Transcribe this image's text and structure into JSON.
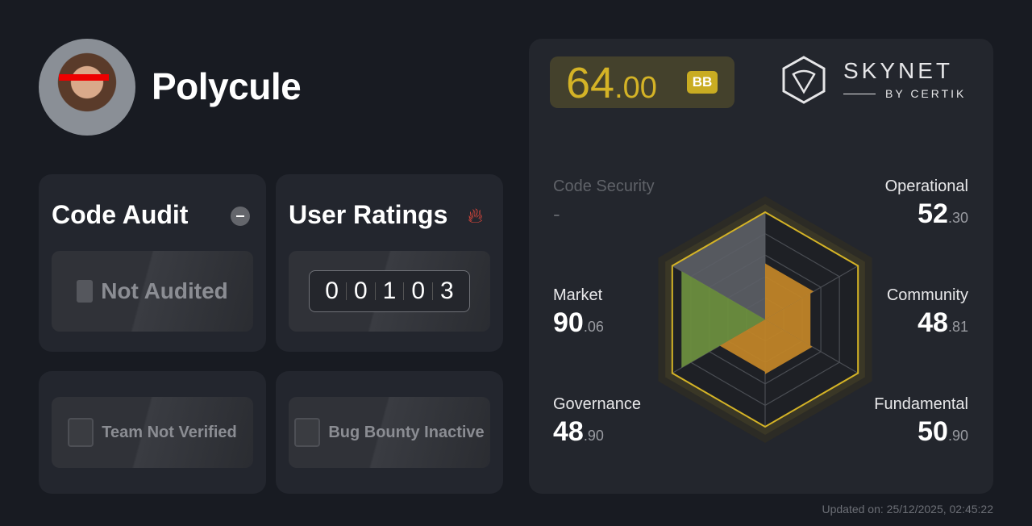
{
  "profile": {
    "name": "Polycule"
  },
  "code_audit": {
    "title": "Code Audit",
    "status": "Not Audited",
    "icon": "minus-circle-icon"
  },
  "user_ratings": {
    "title": "User Ratings",
    "icon": "fire-icon",
    "digits": [
      "0",
      "0",
      "1",
      "0",
      "3"
    ]
  },
  "team": {
    "status": "Team Not Verified"
  },
  "bug_bounty": {
    "status": "Bug Bounty Inactive"
  },
  "score": {
    "int": "64",
    "dec": ".00",
    "grade": "BB"
  },
  "brand": {
    "name": "SKYNET",
    "sub": "BY CERTIK"
  },
  "categories": {
    "code_security": {
      "label": "Code Security",
      "value": "-"
    },
    "operational": {
      "label": "Operational",
      "int": "52",
      "dec": ".30"
    },
    "community": {
      "label": "Community",
      "int": "48",
      "dec": ".81"
    },
    "fundamental": {
      "label": "Fundamental",
      "int": "50",
      "dec": ".90"
    },
    "governance": {
      "label": "Governance",
      "int": "48",
      "dec": ".90"
    },
    "market": {
      "label": "Market",
      "int": "90",
      "dec": ".06"
    }
  },
  "chart_data": {
    "type": "radar",
    "axes": [
      "Code Security",
      "Operational",
      "Community",
      "Fundamental",
      "Governance",
      "Market"
    ],
    "values": [
      null,
      52.3,
      48.81,
      50.9,
      48.9,
      90.06
    ],
    "range": [
      0,
      100
    ],
    "colors": {
      "code_security": "#5c5f66",
      "market": "#6b8e3e",
      "others": "#c08427",
      "outline": "#d4b326"
    }
  },
  "updated": "Updated on: 25/12/2025, 02:45:22"
}
